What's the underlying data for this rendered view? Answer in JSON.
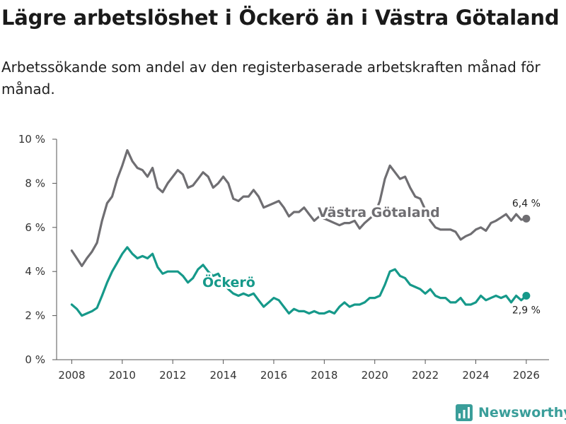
{
  "title": "Lägre arbetslöshet i Öckerö än i Västra Götaland",
  "subtitle": "Arbetssökande som andel av den registerbaserade arbetskraften månad för månad.",
  "brand": "Newsworthy",
  "colors": {
    "vg": "#6f6e72",
    "ockero": "#16998a",
    "brand": "#3a9e9a",
    "axis": "#555555"
  },
  "chart_data": {
    "type": "line",
    "xlabel": "",
    "ylabel": "",
    "xlim": [
      2007.4,
      2026.9
    ],
    "ylim": [
      0,
      10
    ],
    "x_ticks": [
      2008,
      2010,
      2012,
      2014,
      2016,
      2018,
      2020,
      2022,
      2024,
      2026
    ],
    "x_tick_labels": [
      "2008",
      "2010",
      "2012",
      "2014",
      "2016",
      "2018",
      "2020",
      "2022",
      "2024",
      "2026"
    ],
    "y_ticks": [
      0,
      2,
      4,
      6,
      8,
      10
    ],
    "y_tick_labels": [
      "0 %",
      "2 %",
      "4 %",
      "6 %",
      "8 %",
      "10 %"
    ],
    "series": [
      {
        "name": "Västra Götaland",
        "color": "#6f6e72",
        "end_label": "6,4 %",
        "end_value": 6.4,
        "points": [
          [
            2008.0,
            4.95
          ],
          [
            2008.2,
            4.6
          ],
          [
            2008.4,
            4.25
          ],
          [
            2008.6,
            4.6
          ],
          [
            2008.8,
            4.9
          ],
          [
            2009.0,
            5.3
          ],
          [
            2009.2,
            6.3
          ],
          [
            2009.4,
            7.1
          ],
          [
            2009.6,
            7.4
          ],
          [
            2009.8,
            8.2
          ],
          [
            2010.0,
            8.8
          ],
          [
            2010.2,
            9.5
          ],
          [
            2010.4,
            9.0
          ],
          [
            2010.6,
            8.7
          ],
          [
            2010.8,
            8.6
          ],
          [
            2011.0,
            8.3
          ],
          [
            2011.2,
            8.7
          ],
          [
            2011.4,
            7.8
          ],
          [
            2011.6,
            7.6
          ],
          [
            2011.8,
            8.0
          ],
          [
            2012.0,
            8.3
          ],
          [
            2012.2,
            8.6
          ],
          [
            2012.4,
            8.4
          ],
          [
            2012.6,
            7.8
          ],
          [
            2012.8,
            7.9
          ],
          [
            2013.0,
            8.2
          ],
          [
            2013.2,
            8.5
          ],
          [
            2013.4,
            8.3
          ],
          [
            2013.6,
            7.8
          ],
          [
            2013.8,
            8.0
          ],
          [
            2014.0,
            8.3
          ],
          [
            2014.2,
            8.0
          ],
          [
            2014.4,
            7.3
          ],
          [
            2014.6,
            7.2
          ],
          [
            2014.8,
            7.4
          ],
          [
            2015.0,
            7.4
          ],
          [
            2015.2,
            7.7
          ],
          [
            2015.4,
            7.4
          ],
          [
            2015.6,
            6.9
          ],
          [
            2015.8,
            7.0
          ],
          [
            2016.0,
            7.1
          ],
          [
            2016.2,
            7.2
          ],
          [
            2016.4,
            6.9
          ],
          [
            2016.6,
            6.5
          ],
          [
            2016.8,
            6.7
          ],
          [
            2017.0,
            6.7
          ],
          [
            2017.2,
            6.9
          ],
          [
            2017.4,
            6.6
          ],
          [
            2017.6,
            6.3
          ],
          [
            2017.8,
            6.5
          ],
          [
            2018.0,
            6.4
          ],
          [
            2018.2,
            6.3
          ],
          [
            2018.4,
            6.2
          ],
          [
            2018.6,
            6.1
          ],
          [
            2018.8,
            6.2
          ],
          [
            2019.0,
            6.2
          ],
          [
            2019.2,
            6.3
          ],
          [
            2019.4,
            5.95
          ],
          [
            2019.6,
            6.2
          ],
          [
            2019.8,
            6.4
          ],
          [
            2020.0,
            6.6
          ],
          [
            2020.2,
            7.2
          ],
          [
            2020.4,
            8.2
          ],
          [
            2020.6,
            8.8
          ],
          [
            2020.8,
            8.5
          ],
          [
            2021.0,
            8.2
          ],
          [
            2021.2,
            8.3
          ],
          [
            2021.4,
            7.8
          ],
          [
            2021.6,
            7.4
          ],
          [
            2021.8,
            7.3
          ],
          [
            2022.0,
            6.8
          ],
          [
            2022.2,
            6.3
          ],
          [
            2022.4,
            6.0
          ],
          [
            2022.6,
            5.9
          ],
          [
            2022.8,
            5.9
          ],
          [
            2023.0,
            5.9
          ],
          [
            2023.2,
            5.8
          ],
          [
            2023.4,
            5.45
          ],
          [
            2023.6,
            5.6
          ],
          [
            2023.8,
            5.7
          ],
          [
            2024.0,
            5.9
          ],
          [
            2024.2,
            6.0
          ],
          [
            2024.4,
            5.85
          ],
          [
            2024.6,
            6.2
          ],
          [
            2024.8,
            6.3
          ],
          [
            2025.0,
            6.45
          ],
          [
            2025.2,
            6.6
          ],
          [
            2025.4,
            6.3
          ],
          [
            2025.6,
            6.6
          ],
          [
            2025.8,
            6.35
          ],
          [
            2026.0,
            6.4
          ]
        ]
      },
      {
        "name": "Öckerö",
        "color": "#16998a",
        "end_label": "2,9 %",
        "end_value": 2.9,
        "points": [
          [
            2008.0,
            2.5
          ],
          [
            2008.2,
            2.3
          ],
          [
            2008.4,
            2.0
          ],
          [
            2008.6,
            2.1
          ],
          [
            2008.8,
            2.2
          ],
          [
            2009.0,
            2.35
          ],
          [
            2009.2,
            2.9
          ],
          [
            2009.4,
            3.5
          ],
          [
            2009.6,
            4.0
          ],
          [
            2009.8,
            4.4
          ],
          [
            2010.0,
            4.8
          ],
          [
            2010.2,
            5.1
          ],
          [
            2010.4,
            4.8
          ],
          [
            2010.6,
            4.6
          ],
          [
            2010.8,
            4.7
          ],
          [
            2011.0,
            4.6
          ],
          [
            2011.2,
            4.8
          ],
          [
            2011.4,
            4.2
          ],
          [
            2011.6,
            3.9
          ],
          [
            2011.8,
            4.0
          ],
          [
            2012.0,
            4.0
          ],
          [
            2012.2,
            4.0
          ],
          [
            2012.4,
            3.8
          ],
          [
            2012.6,
            3.5
          ],
          [
            2012.8,
            3.7
          ],
          [
            2013.0,
            4.1
          ],
          [
            2013.2,
            4.3
          ],
          [
            2013.4,
            4.0
          ],
          [
            2013.6,
            3.8
          ],
          [
            2013.8,
            3.9
          ],
          [
            2014.0,
            3.5
          ],
          [
            2014.2,
            3.2
          ],
          [
            2014.4,
            3.0
          ],
          [
            2014.6,
            2.9
          ],
          [
            2014.8,
            3.0
          ],
          [
            2015.0,
            2.9
          ],
          [
            2015.2,
            3.0
          ],
          [
            2015.4,
            2.7
          ],
          [
            2015.6,
            2.4
          ],
          [
            2015.8,
            2.6
          ],
          [
            2016.0,
            2.8
          ],
          [
            2016.2,
            2.7
          ],
          [
            2016.4,
            2.4
          ],
          [
            2016.6,
            2.1
          ],
          [
            2016.8,
            2.3
          ],
          [
            2017.0,
            2.2
          ],
          [
            2017.2,
            2.2
          ],
          [
            2017.4,
            2.1
          ],
          [
            2017.6,
            2.2
          ],
          [
            2017.8,
            2.1
          ],
          [
            2018.0,
            2.1
          ],
          [
            2018.2,
            2.2
          ],
          [
            2018.4,
            2.1
          ],
          [
            2018.6,
            2.4
          ],
          [
            2018.8,
            2.6
          ],
          [
            2019.0,
            2.4
          ],
          [
            2019.2,
            2.5
          ],
          [
            2019.4,
            2.5
          ],
          [
            2019.6,
            2.6
          ],
          [
            2019.8,
            2.8
          ],
          [
            2020.0,
            2.8
          ],
          [
            2020.2,
            2.9
          ],
          [
            2020.4,
            3.4
          ],
          [
            2020.6,
            4.0
          ],
          [
            2020.8,
            4.1
          ],
          [
            2021.0,
            3.8
          ],
          [
            2021.2,
            3.7
          ],
          [
            2021.4,
            3.4
          ],
          [
            2021.6,
            3.3
          ],
          [
            2021.8,
            3.2
          ],
          [
            2022.0,
            3.0
          ],
          [
            2022.2,
            3.2
          ],
          [
            2022.4,
            2.9
          ],
          [
            2022.6,
            2.8
          ],
          [
            2022.8,
            2.8
          ],
          [
            2023.0,
            2.6
          ],
          [
            2023.2,
            2.6
          ],
          [
            2023.4,
            2.8
          ],
          [
            2023.6,
            2.5
          ],
          [
            2023.8,
            2.5
          ],
          [
            2024.0,
            2.6
          ],
          [
            2024.2,
            2.9
          ],
          [
            2024.4,
            2.7
          ],
          [
            2024.6,
            2.8
          ],
          [
            2024.8,
            2.9
          ],
          [
            2025.0,
            2.8
          ],
          [
            2025.2,
            2.9
          ],
          [
            2025.4,
            2.6
          ],
          [
            2025.6,
            2.9
          ],
          [
            2025.8,
            2.7
          ],
          [
            2026.0,
            2.9
          ]
        ]
      }
    ],
    "annotations": [
      {
        "text": "Västra Götaland",
        "series": 0
      },
      {
        "text": "Öckerö",
        "series": 1
      }
    ]
  }
}
